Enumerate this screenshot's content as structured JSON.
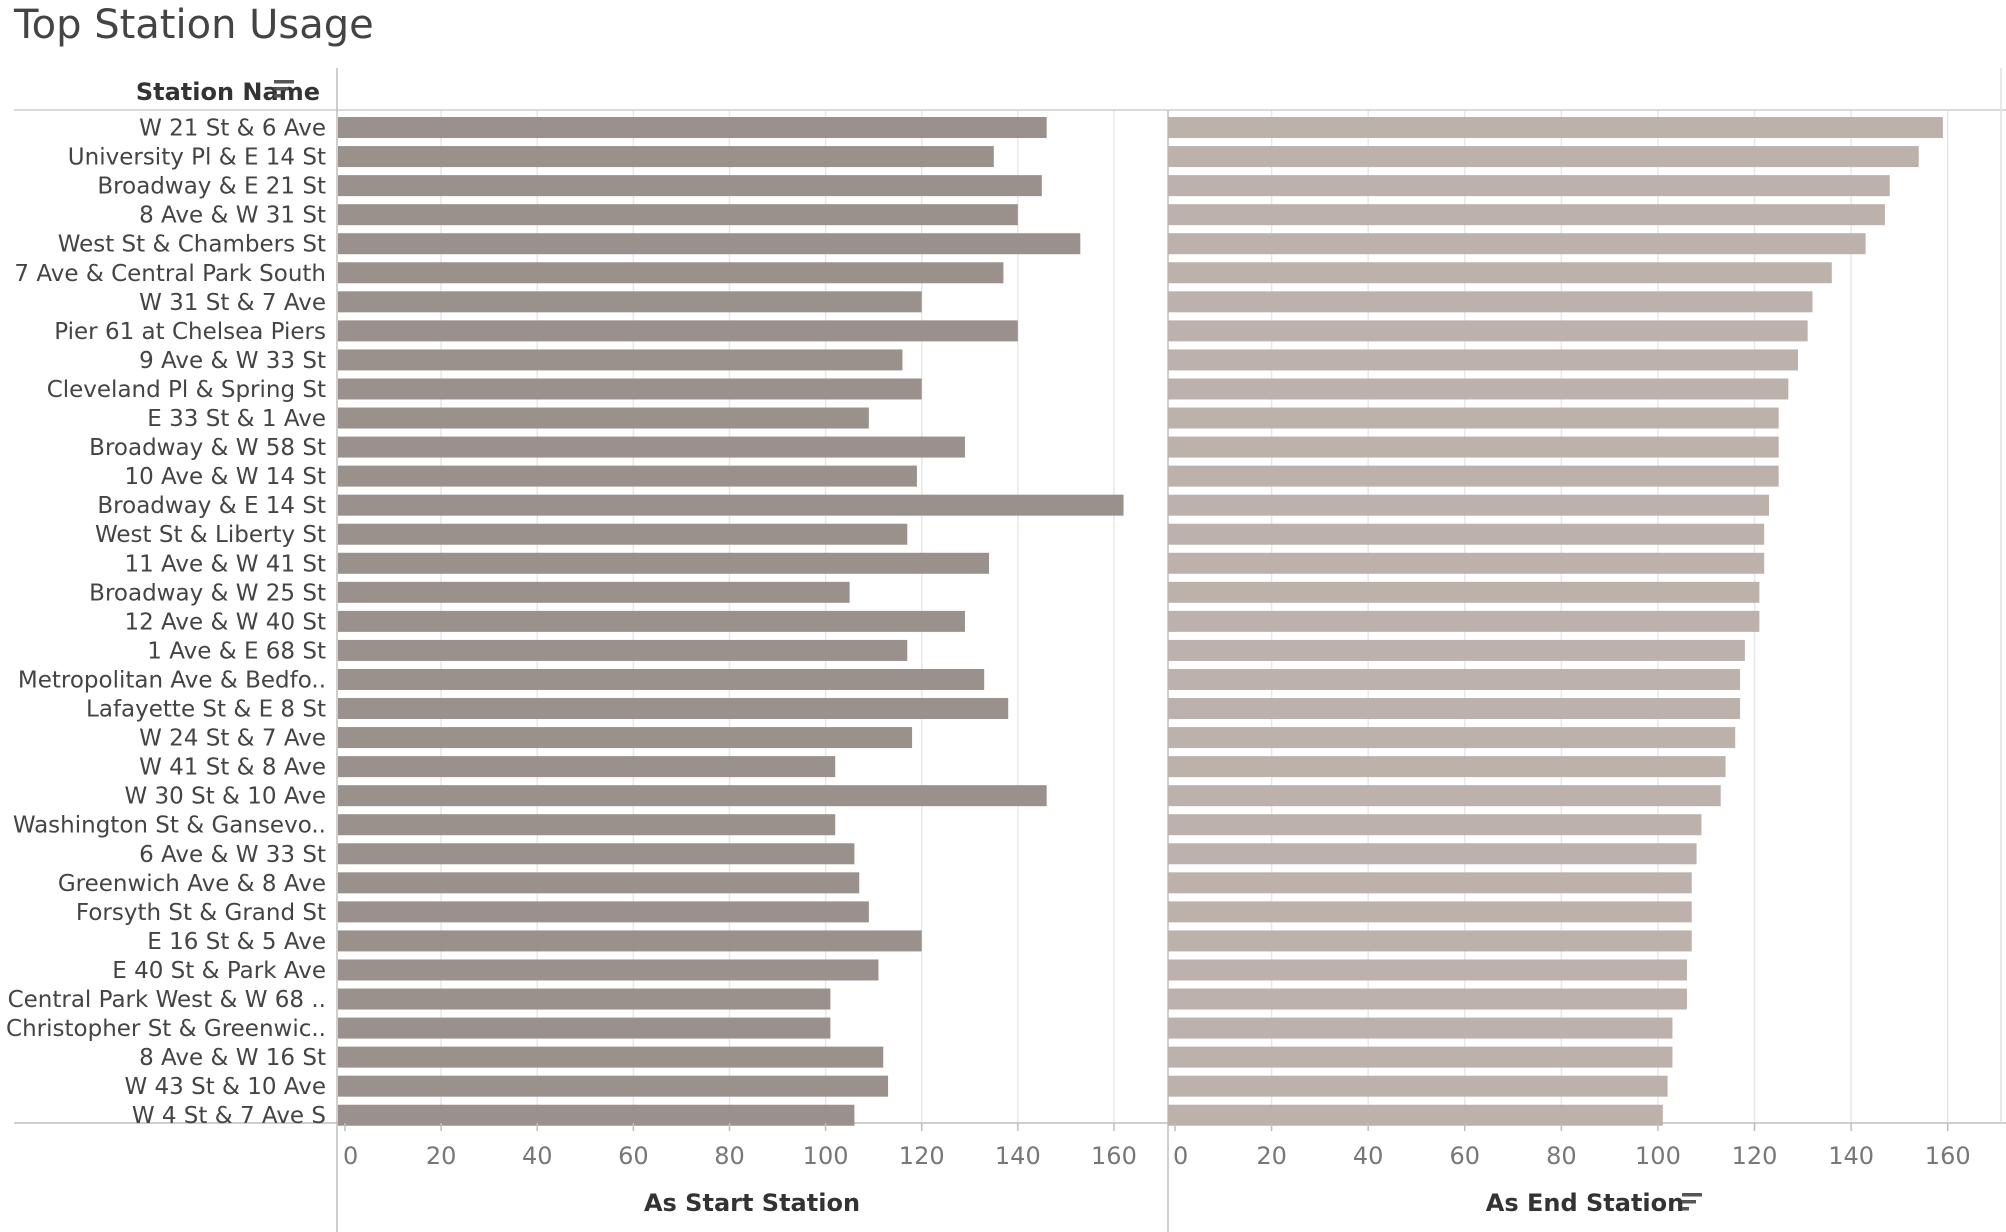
{
  "page_title": "Top Station Usage",
  "header": {
    "station_name_label": "Station Name"
  },
  "colors": {
    "start_bar": "#9a908c",
    "end_bar": "#bcb1ab",
    "gridline": "#e8e8e8",
    "axis": "#bdbdbd"
  },
  "icons": {
    "sort": "sort-descending-icon"
  },
  "chart_data": {
    "type": "bar",
    "orientation": "horizontal",
    "title": "Top Station Usage",
    "ylabel": "Station Name",
    "categories": [
      "W 21 St & 6 Ave",
      "University Pl & E 14 St",
      "Broadway & E 21 St",
      "8 Ave & W 31 St",
      "West St & Chambers St",
      "7 Ave & Central Park South",
      "W 31 St & 7 Ave",
      "Pier 61 at Chelsea Piers",
      "9 Ave & W 33 St",
      "Cleveland Pl & Spring St",
      "E 33 St & 1 Ave",
      "Broadway & W 58 St",
      "10 Ave & W 14 St",
      "Broadway & E 14 St",
      "West St & Liberty St",
      "11 Ave & W 41 St",
      "Broadway & W 25 St",
      "12 Ave & W 40 St",
      "1 Ave & E 68 St",
      "Metropolitan Ave & Bedfo..",
      "Lafayette St & E 8 St",
      "W 24 St & 7 Ave",
      "W 41 St & 8 Ave",
      "W 30 St & 10 Ave",
      "Washington St & Gansevo..",
      "6 Ave & W 33 St",
      "Greenwich Ave & 8 Ave",
      "Forsyth St & Grand St",
      "E 16 St & 5 Ave",
      "E 40 St & Park Ave",
      "Central Park West & W 68 ..",
      "Christopher St & Greenwic..",
      "8 Ave & W 16 St",
      "W 43 St & 10 Ave",
      "W 4 St & 7 Ave S"
    ],
    "series": [
      {
        "name": "As Start Station",
        "values": [
          146,
          135,
          145,
          140,
          153,
          137,
          120,
          140,
          116,
          120,
          109,
          129,
          119,
          162,
          117,
          134,
          105,
          129,
          117,
          133,
          138,
          118,
          102,
          146,
          102,
          106,
          107,
          109,
          120,
          111,
          101,
          101,
          112,
          113,
          106
        ]
      },
      {
        "name": "As End Station",
        "values": [
          159,
          154,
          148,
          147,
          143,
          136,
          132,
          131,
          129,
          127,
          125,
          125,
          125,
          123,
          122,
          122,
          121,
          121,
          118,
          117,
          117,
          116,
          114,
          113,
          109,
          108,
          107,
          107,
          107,
          106,
          106,
          103,
          103,
          102,
          101
        ]
      }
    ],
    "xlim": [
      0,
      170
    ],
    "xticks": [
      0,
      20,
      40,
      60,
      80,
      100,
      120,
      140,
      160
    ],
    "grid": true,
    "legend": "none",
    "sorted_by": "As End Station"
  }
}
